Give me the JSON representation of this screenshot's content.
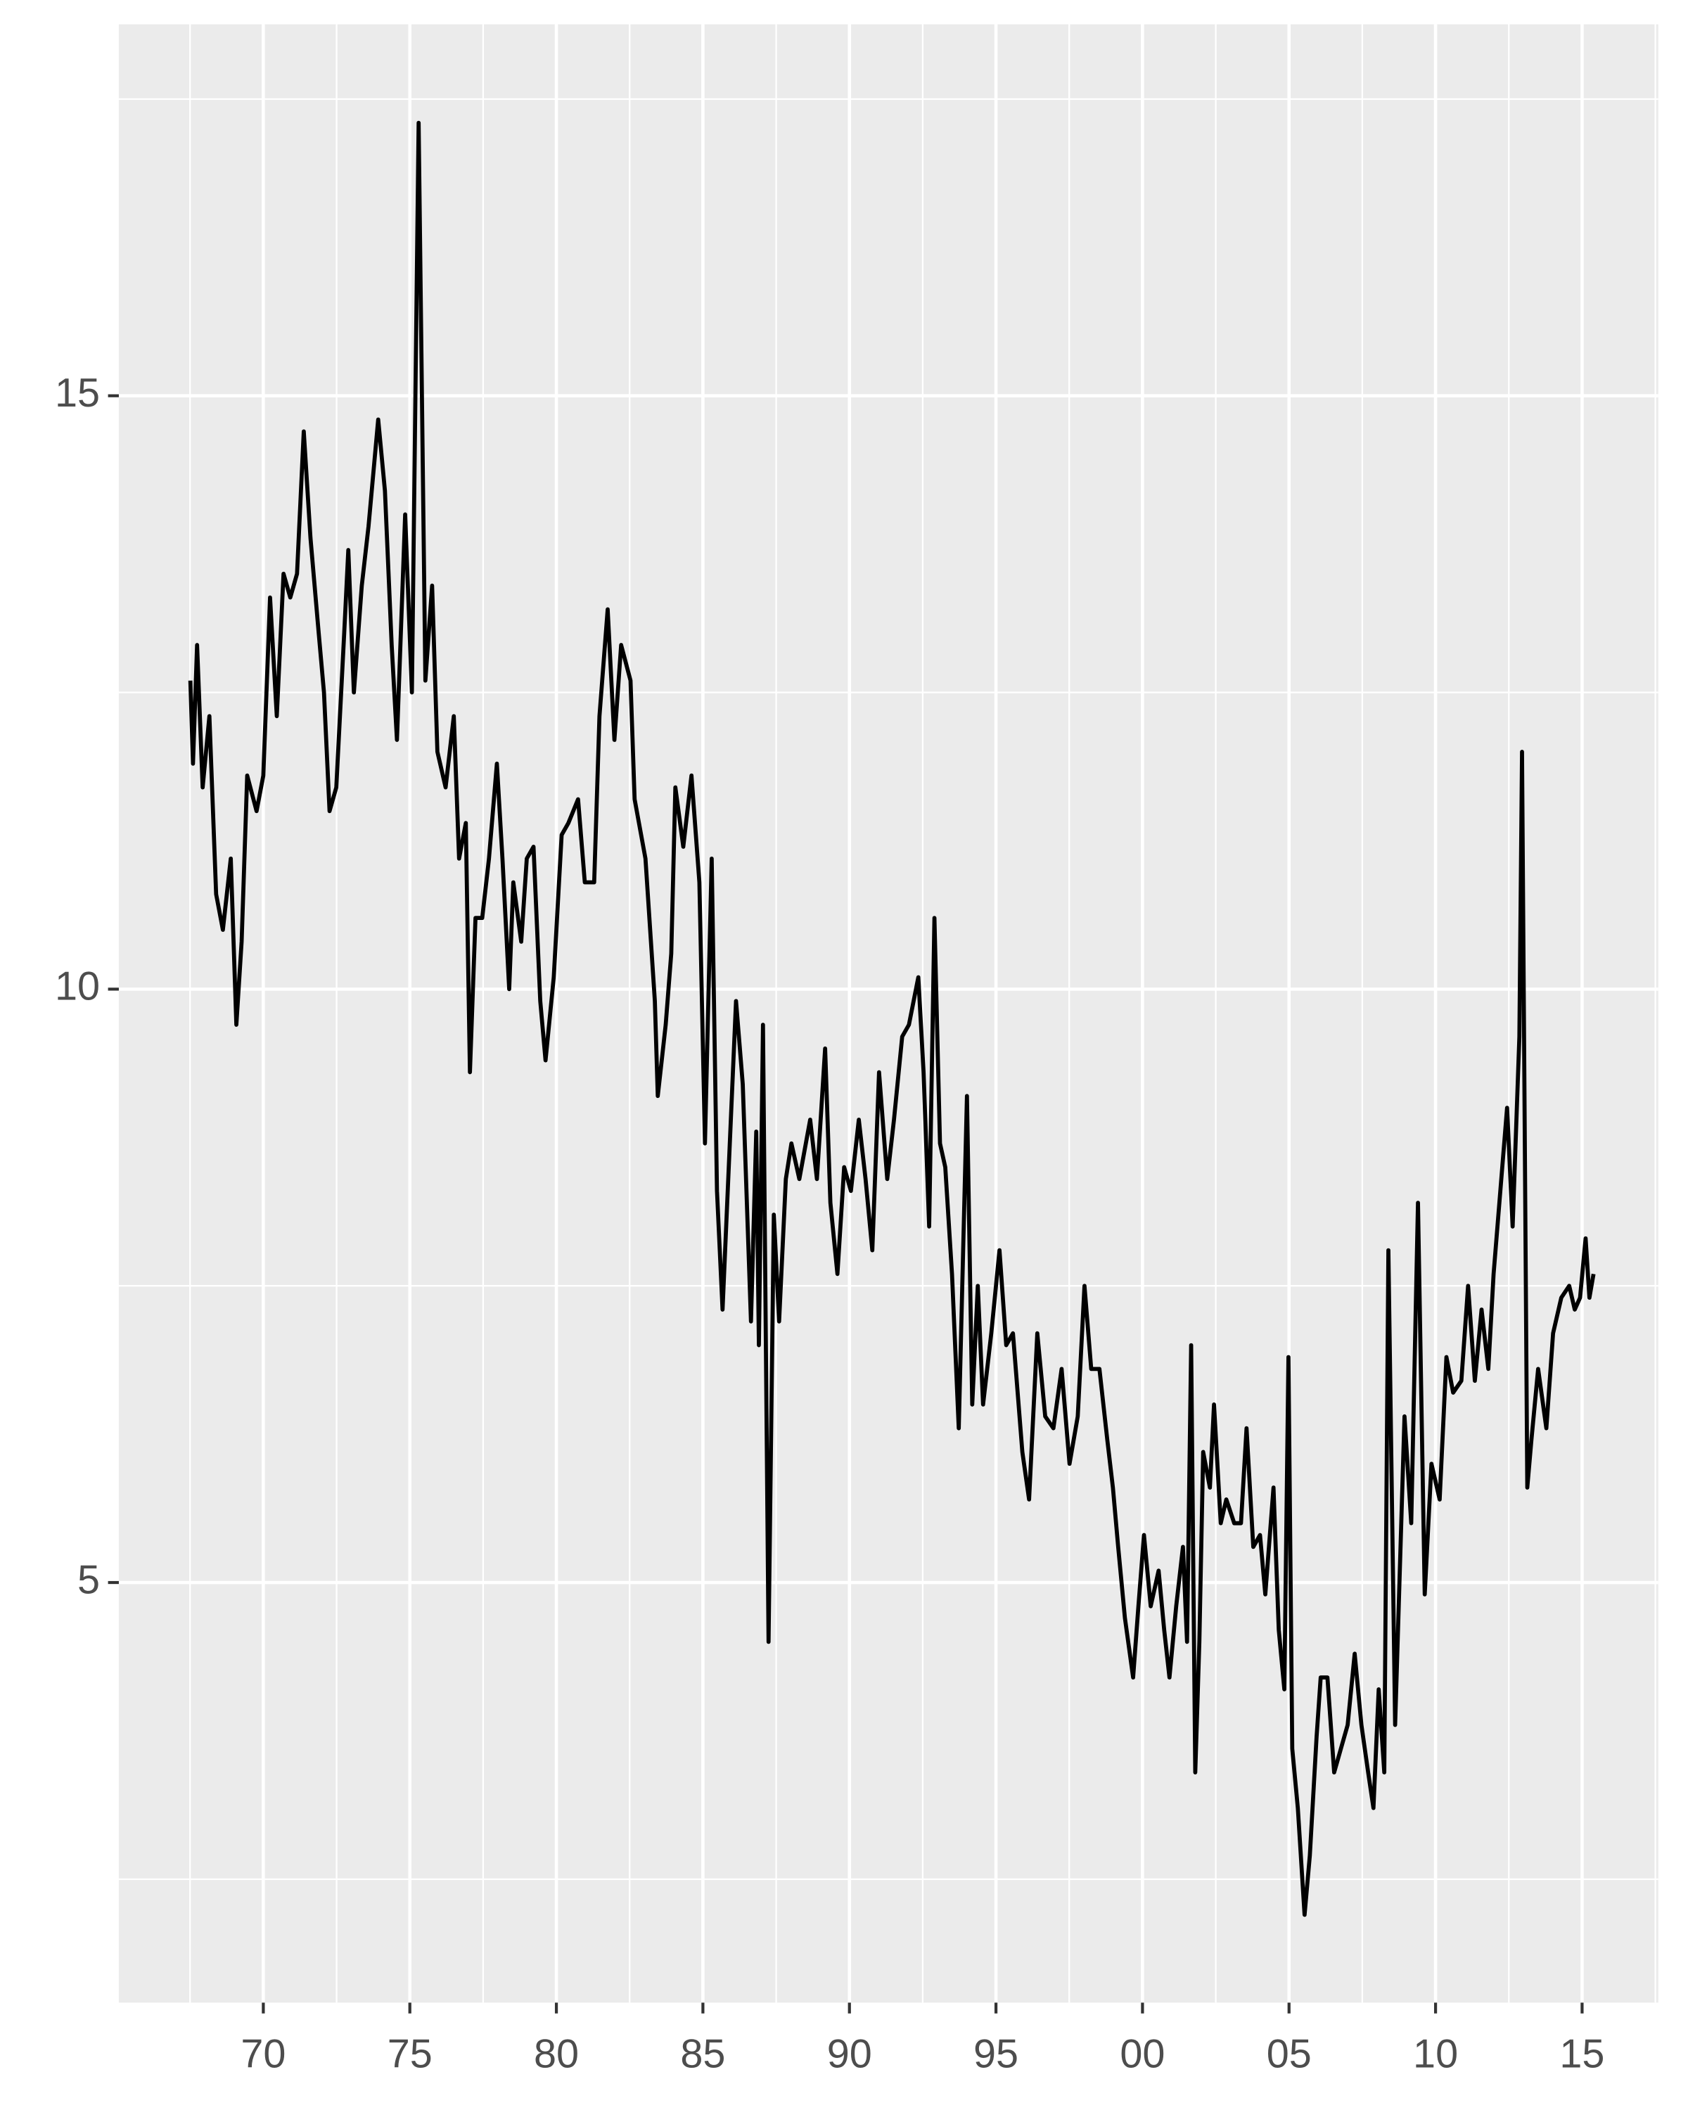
{
  "chart_data": {
    "type": "line",
    "color": "#000000",
    "grid": true,
    "xlim": [
      1965.07,
      2017.6
    ],
    "ylim": [
      1.46,
      18.13
    ],
    "xticks": [
      {
        "value": 1970,
        "label": "70"
      },
      {
        "value": 1975,
        "label": "75"
      },
      {
        "value": 1980,
        "label": "80"
      },
      {
        "value": 1985,
        "label": "85"
      },
      {
        "value": 1990,
        "label": "90"
      },
      {
        "value": 1995,
        "label": "95"
      },
      {
        "value": 2000,
        "label": "00"
      },
      {
        "value": 2005,
        "label": "05"
      },
      {
        "value": 2010,
        "label": "10"
      },
      {
        "value": 2015,
        "label": "15"
      }
    ],
    "yticks": [
      5,
      10,
      15
    ],
    "x": [
      1967.51,
      1967.6,
      1967.74,
      1967.93,
      1968.16,
      1968.39,
      1968.62,
      1968.89,
      1969.08,
      1969.26,
      1969.45,
      1969.77,
      1970.0,
      1970.23,
      1970.46,
      1970.69,
      1970.92,
      1971.15,
      1971.38,
      1971.61,
      1971.89,
      1972.07,
      1972.26,
      1972.49,
      1972.76,
      1972.9,
      1973.09,
      1973.36,
      1973.59,
      1973.92,
      1974.15,
      1974.38,
      1974.56,
      1974.84,
      1975.07,
      1975.3,
      1975.53,
      1975.76,
      1975.94,
      1976.22,
      1976.5,
      1976.68,
      1976.91,
      1977.05,
      1977.24,
      1977.47,
      1977.7,
      1977.97,
      1978.16,
      1978.39,
      1978.53,
      1978.8,
      1978.99,
      1979.22,
      1979.45,
      1979.63,
      1979.91,
      1980.18,
      1980.41,
      1980.74,
      1980.97,
      1981.29,
      1981.47,
      1981.75,
      1981.98,
      1982.21,
      1982.53,
      1982.67,
      1983.04,
      1983.36,
      1983.46,
      1983.73,
      1983.92,
      1984.06,
      1984.33,
      1984.61,
      1984.88,
      1985.07,
      1985.3,
      1985.48,
      1985.67,
      1985.9,
      1986.13,
      1986.36,
      1986.64,
      1986.82,
      1986.91,
      1987.05,
      1987.24,
      1987.42,
      1987.6,
      1987.83,
      1988.02,
      1988.29,
      1988.66,
      1988.89,
      1989.17,
      1989.35,
      1989.59,
      1989.82,
      1990.05,
      1990.32,
      1990.55,
      1990.78,
      1991.01,
      1991.29,
      1991.52,
      1991.8,
      1992.03,
      1992.35,
      1992.53,
      1992.72,
      1992.9,
      1993.09,
      1993.27,
      1993.5,
      1993.73,
      1994.01,
      1994.19,
      1994.38,
      1994.56,
      1994.84,
      1995.12,
      1995.35,
      1995.58,
      1995.9,
      1996.13,
      1996.41,
      1996.68,
      1996.96,
      1997.24,
      1997.51,
      1997.79,
      1998.02,
      1998.25,
      1998.53,
      1998.8,
      1998.99,
      1999.17,
      1999.4,
      1999.68,
      1999.86,
      2000.05,
      2000.28,
      2000.55,
      2000.74,
      2000.92,
      2001.15,
      2001.38,
      2001.52,
      2001.66,
      2001.8,
      2001.94,
      2002.07,
      2002.3,
      2002.44,
      2002.67,
      2002.86,
      2003.13,
      2003.36,
      2003.55,
      2003.78,
      2004.01,
      2004.19,
      2004.47,
      2004.65,
      2004.84,
      2004.98,
      2005.11,
      2005.3,
      2005.53,
      2005.71,
      2005.94,
      2006.08,
      2006.31,
      2006.54,
      2006.77,
      2007.0,
      2007.24,
      2007.47,
      2007.7,
      2007.88,
      2008.06,
      2008.25,
      2008.39,
      2008.62,
      2008.94,
      2009.17,
      2009.4,
      2009.63,
      2009.86,
      2010.14,
      2010.37,
      2010.6,
      2010.88,
      2011.11,
      2011.34,
      2011.57,
      2011.8,
      2011.98,
      2012.21,
      2012.44,
      2012.63,
      2012.86,
      2012.95,
      2013.13,
      2013.27,
      2013.5,
      2013.78,
      2014.01,
      2014.29,
      2014.56,
      2014.75,
      2014.93,
      2015.12,
      2015.25,
      2015.39
    ],
    "values": [
      12.6,
      11.9,
      12.9,
      11.7,
      12.3,
      10.8,
      10.5,
      11.1,
      9.7,
      10.4,
      11.8,
      11.5,
      11.8,
      13.3,
      12.3,
      13.5,
      13.3,
      13.5,
      14.7,
      13.8,
      13.0,
      12.5,
      11.5,
      11.7,
      13.0,
      13.7,
      12.5,
      13.4,
      13.9,
      14.8,
      14.2,
      12.9,
      12.1,
      14.0,
      12.5,
      17.3,
      12.6,
      13.4,
      12.0,
      11.7,
      12.3,
      11.1,
      11.4,
      9.3,
      10.6,
      10.6,
      11.1,
      11.9,
      11.1,
      10.0,
      10.9,
      10.4,
      11.1,
      11.2,
      9.9,
      9.4,
      10.1,
      11.3,
      11.4,
      11.6,
      10.9,
      10.9,
      12.3,
      13.2,
      12.1,
      12.9,
      12.6,
      11.6,
      11.1,
      9.9,
      9.1,
      9.7,
      10.3,
      11.7,
      11.2,
      11.8,
      10.9,
      8.7,
      11.1,
      8.3,
      7.3,
      8.6,
      9.9,
      9.2,
      7.2,
      8.8,
      7.0,
      9.7,
      4.5,
      8.1,
      7.2,
      8.4,
      8.7,
      8.4,
      8.9,
      8.4,
      9.5,
      8.2,
      7.6,
      8.5,
      8.3,
      8.9,
      8.4,
      7.8,
      9.3,
      8.4,
      8.9,
      9.6,
      9.7,
      10.1,
      9.3,
      8.0,
      10.6,
      8.7,
      8.5,
      7.6,
      6.3,
      9.1,
      6.5,
      7.5,
      6.5,
      7.1,
      7.8,
      7.0,
      7.1,
      6.1,
      5.7,
      7.1,
      6.4,
      6.3,
      6.8,
      6.0,
      6.4,
      7.5,
      6.8,
      6.8,
      6.2,
      5.8,
      5.3,
      4.7,
      4.2,
      4.8,
      5.4,
      4.8,
      5.1,
      4.6,
      4.2,
      4.8,
      5.3,
      4.5,
      7.0,
      3.4,
      4.5,
      6.1,
      5.8,
      6.5,
      5.5,
      5.7,
      5.5,
      5.5,
      6.3,
      5.3,
      5.4,
      4.9,
      5.8,
      4.6,
      4.1,
      6.9,
      3.6,
      3.1,
      2.2,
      2.7,
      3.7,
      4.2,
      4.2,
      3.4,
      3.6,
      3.8,
      4.4,
      3.8,
      3.4,
      3.1,
      4.1,
      3.4,
      7.8,
      3.8,
      6.4,
      5.5,
      8.2,
      4.9,
      6.0,
      5.7,
      6.9,
      6.6,
      6.7,
      7.5,
      6.7,
      7.3,
      6.8,
      7.6,
      8.3,
      9.0,
      8.0,
      9.6,
      12.0,
      5.8,
      6.2,
      6.8,
      6.3,
      7.1,
      7.4,
      7.5,
      7.3,
      7.4,
      7.9,
      7.4,
      7.6
    ]
  }
}
